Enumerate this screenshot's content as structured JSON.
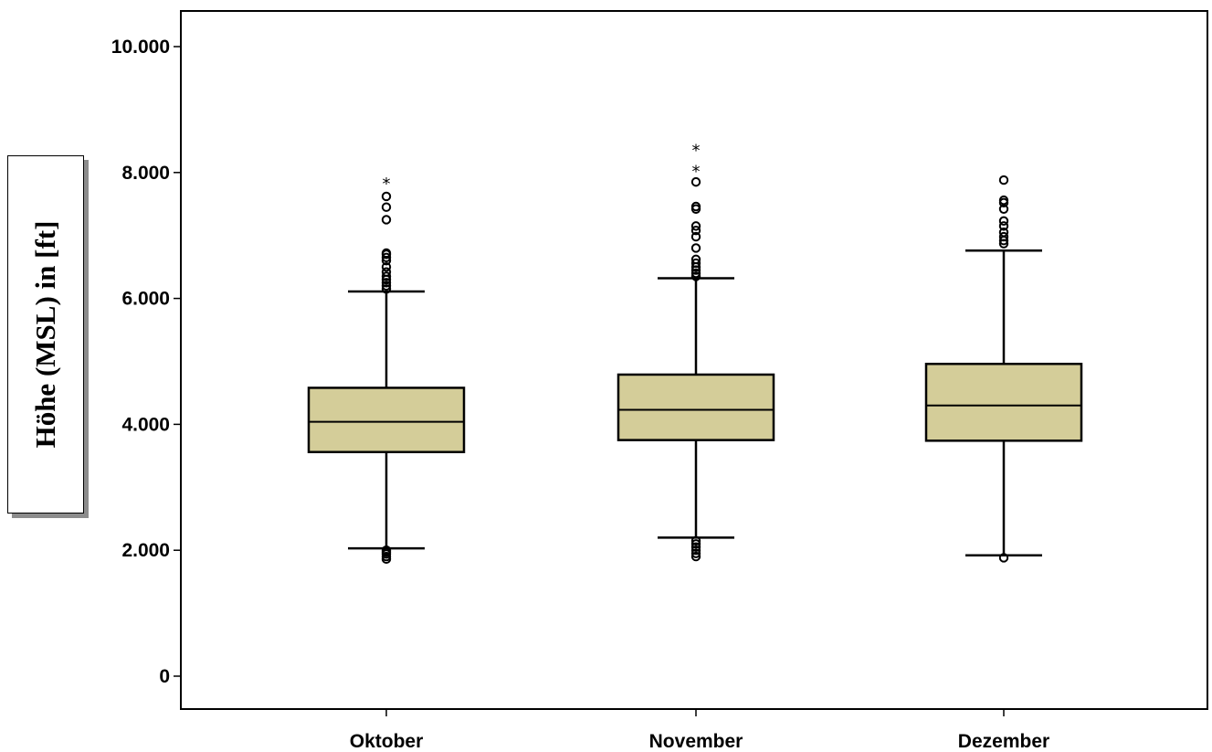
{
  "chart_data": {
    "type": "boxplot",
    "ylabel": "Höhe (MSL) in [ft]",
    "ylim": [
      -500,
      10500
    ],
    "yticks": [
      0,
      2000,
      4000,
      6000,
      8000,
      10000
    ],
    "ytick_labels": [
      "0",
      "2.000",
      "4.000",
      "6.000",
      "8.000",
      "10.000"
    ],
    "categories": [
      "Oktober",
      "November",
      "Dezember"
    ],
    "box_color": "#d4cd99",
    "boxes": [
      {
        "category": "Oktober",
        "whisker_low": 2030,
        "q1": 3560,
        "median": 4040,
        "q3": 4580,
        "whisker_high": 6110,
        "outliers_circle": [
          1860,
          1900,
          1940,
          1970,
          2000,
          6150,
          6200,
          6250,
          6300,
          6350,
          6420,
          6500,
          6600,
          6650,
          6700,
          6720,
          7250,
          7450,
          7620
        ],
        "outliers_extreme": [
          7850
        ]
      },
      {
        "category": "November",
        "whisker_low": 2200,
        "q1": 3750,
        "median": 4230,
        "q3": 4790,
        "whisker_high": 6320,
        "outliers_circle": [
          1900,
          1950,
          2000,
          2050,
          2100,
          2150,
          6350,
          6400,
          6450,
          6500,
          6560,
          6620,
          6800,
          6980,
          7080,
          7150,
          7420,
          7460,
          7850
        ],
        "outliers_extreme": [
          8050,
          8380
        ]
      },
      {
        "category": "Dezember",
        "whisker_low": 1920,
        "q1": 3740,
        "median": 4300,
        "q3": 4960,
        "whisker_high": 6760,
        "outliers_circle": [
          1880,
          6870,
          6920,
          6980,
          7050,
          7150,
          7230,
          7420,
          7520,
          7560,
          7880
        ],
        "outliers_extreme": []
      }
    ]
  }
}
